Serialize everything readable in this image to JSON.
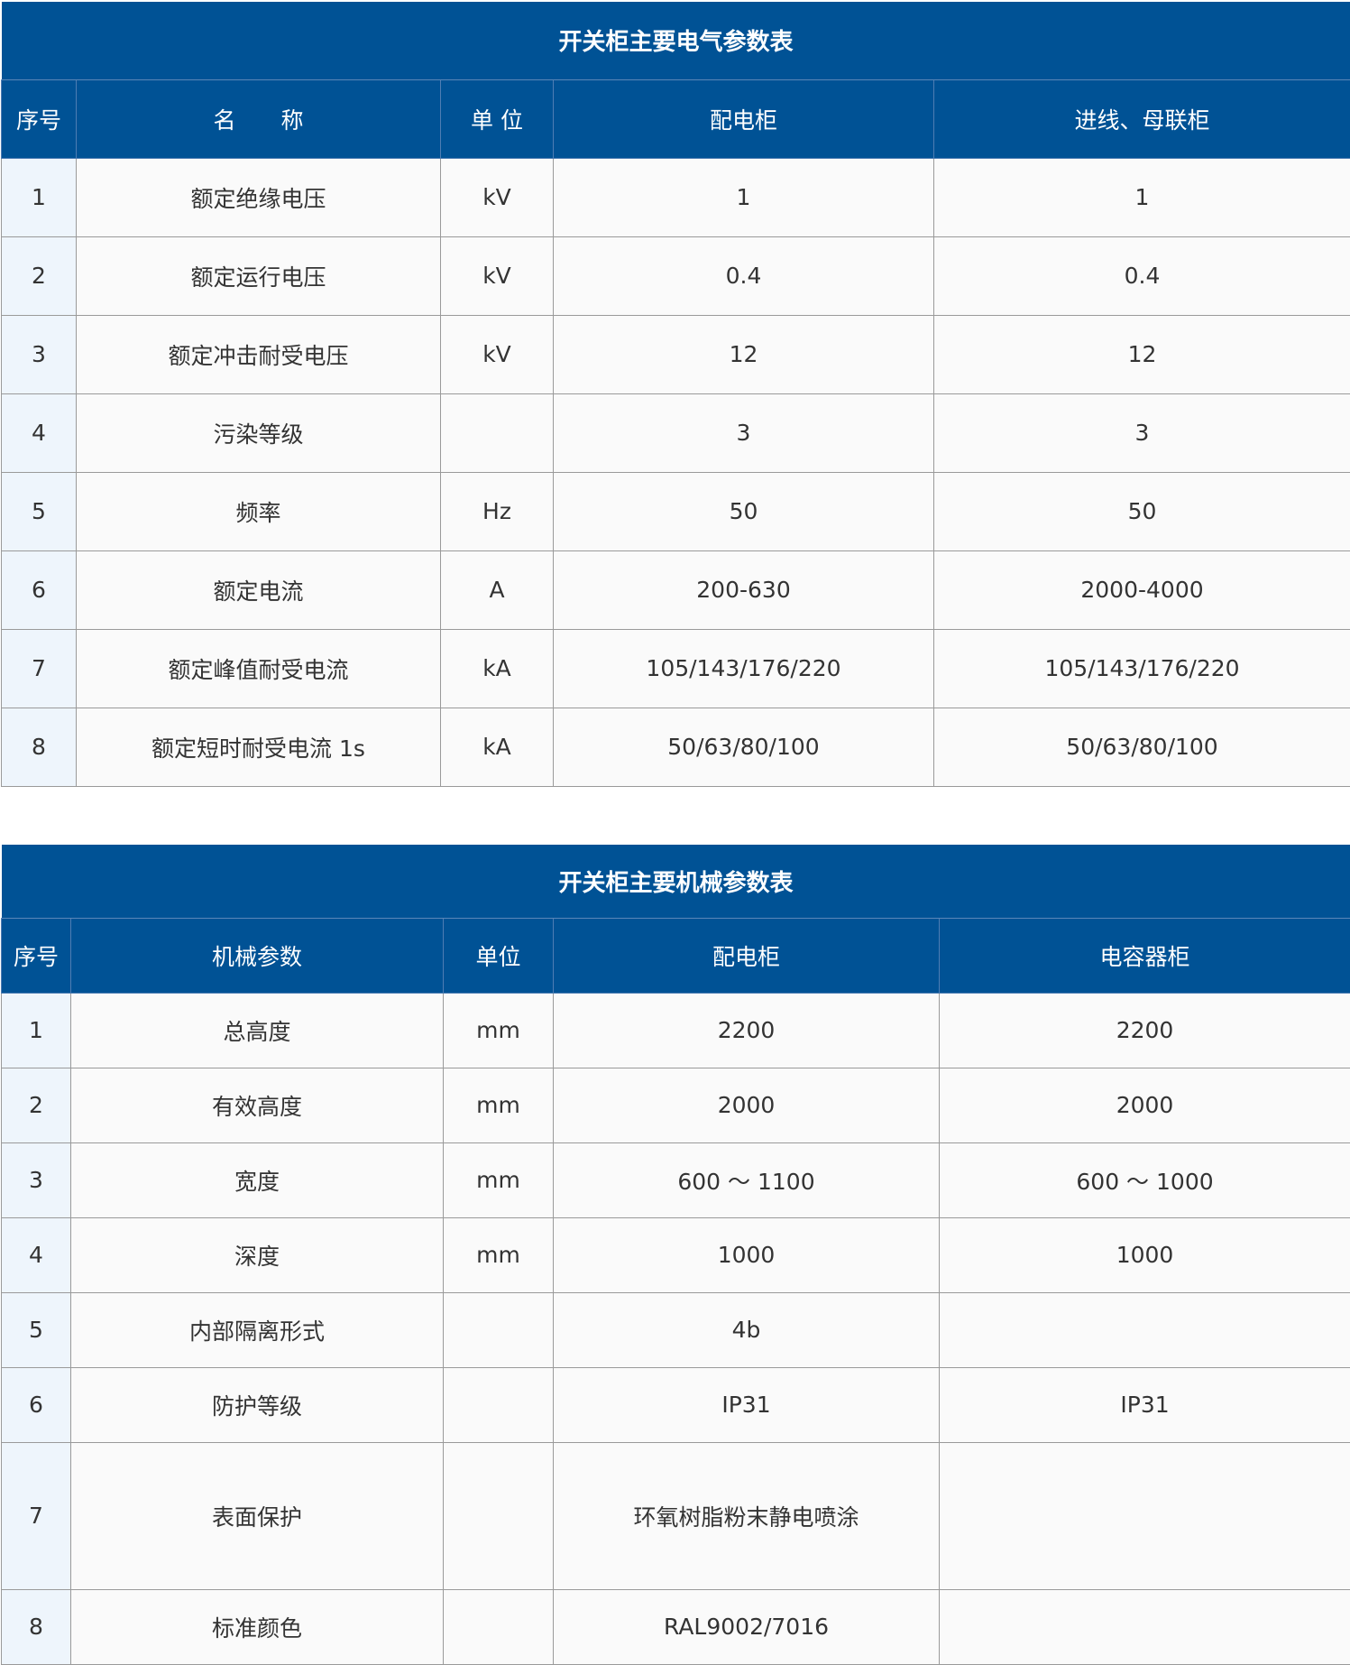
{
  "electrical": {
    "title": "开关柜主要电气参数表",
    "headers": [
      "序号",
      "名　　称",
      "单 位",
      "配电柜",
      "进线、母联柜"
    ],
    "rows": [
      [
        "1",
        "额定绝缘电压",
        "kV",
        "1",
        "1"
      ],
      [
        "2",
        "额定运行电压",
        "kV",
        "0.4",
        "0.4"
      ],
      [
        "3",
        "额定冲击耐受电压",
        "kV",
        "12",
        "12"
      ],
      [
        "4",
        "污染等级",
        "",
        "3",
        "3"
      ],
      [
        "5",
        "频率",
        "Hz",
        "50",
        "50"
      ],
      [
        "6",
        "额定电流",
        "A",
        "200-630",
        "2000-4000"
      ],
      [
        "7",
        "额定峰值耐受电流",
        "kA",
        "105/143/176/220",
        "105/143/176/220"
      ],
      [
        "8",
        "额定短时耐受电流 1s",
        "kA",
        "50/63/80/100",
        "50/63/80/100"
      ]
    ]
  },
  "mechanical": {
    "title": "开关柜主要机械参数表",
    "headers": [
      "序号",
      "机械参数",
      "单位",
      "配电柜",
      "电容器柜"
    ],
    "rows": [
      [
        "1",
        "总高度",
        "mm",
        "2200",
        "2200"
      ],
      [
        "2",
        "有效高度",
        "mm",
        "2000",
        "2000"
      ],
      [
        "3",
        "宽度",
        "mm",
        "600 ～ 1100",
        "600 ～ 1000"
      ],
      [
        "4",
        "深度",
        "mm",
        "1000",
        "1000"
      ],
      [
        "5",
        "内部隔离形式",
        "",
        "4b",
        ""
      ],
      [
        "6",
        "防护等级",
        "",
        "IP31",
        "IP31"
      ],
      [
        "7",
        "表面保护",
        "",
        "环氧树脂粉末静电喷涂",
        ""
      ],
      [
        "8",
        "标准颜色",
        "",
        "RAL9002/7016",
        ""
      ]
    ]
  },
  "colors": {
    "header_bg": "#005295",
    "index_bg": "#eef5fc",
    "cell_bg": "#fafafa",
    "border": "#9a9a9a"
  }
}
